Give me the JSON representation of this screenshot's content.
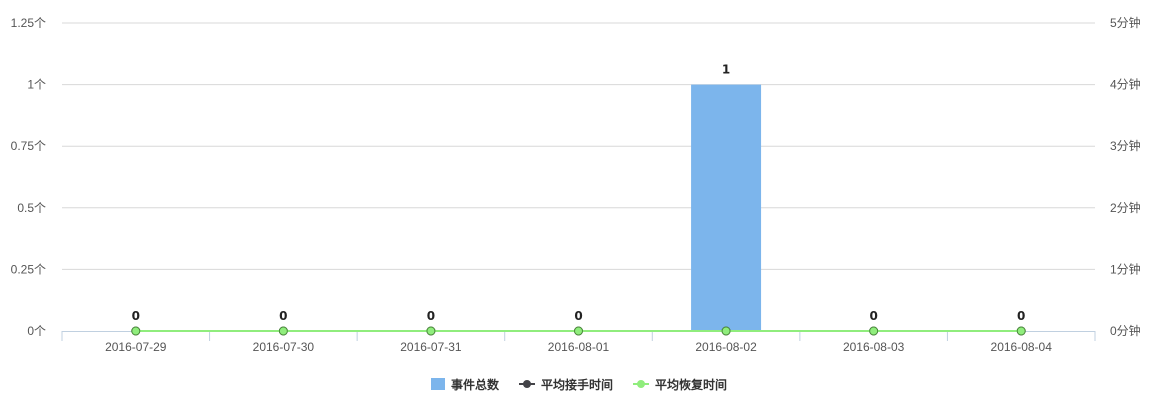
{
  "colors": {
    "bar": "#7cb5ec",
    "series2": "#434348",
    "series3": "#90ed7d",
    "grid": "#d8d8d8",
    "axis": "#c0d0e0"
  },
  "chart_data": {
    "type": "bar",
    "categories": [
      "2016-07-29",
      "2016-07-30",
      "2016-07-31",
      "2016-08-01",
      "2016-08-02",
      "2016-08-03",
      "2016-08-04"
    ],
    "series": [
      {
        "name": "事件总数",
        "type": "bar",
        "axis": "left",
        "values": [
          0,
          0,
          0,
          0,
          1,
          0,
          0
        ],
        "data_labels": [
          "0",
          "0",
          "0",
          "0",
          "1",
          "0",
          "0"
        ]
      },
      {
        "name": "平均接手时间",
        "type": "line",
        "axis": "right",
        "values": [
          0,
          0,
          0,
          0,
          0,
          0,
          0
        ]
      },
      {
        "name": "平均恢复时间",
        "type": "line",
        "axis": "right",
        "values": [
          0,
          0,
          0,
          0,
          0,
          0,
          0
        ]
      }
    ],
    "y_left": {
      "ylim": [
        0,
        1.25
      ],
      "ticks": [
        0,
        0.25,
        0.5,
        0.75,
        1,
        1.25
      ],
      "tick_labels": [
        "0个",
        "0.25个",
        "0.5个",
        "0.75个",
        "1个",
        "1.25个"
      ]
    },
    "y_right": {
      "ylim": [
        0,
        5
      ],
      "ticks": [
        0,
        1,
        2,
        3,
        4,
        5
      ],
      "tick_labels": [
        "0分钟",
        "1分钟",
        "2分钟",
        "3分钟",
        "4分钟",
        "5分钟"
      ]
    },
    "grid": true,
    "legend_position": "bottom-center"
  }
}
